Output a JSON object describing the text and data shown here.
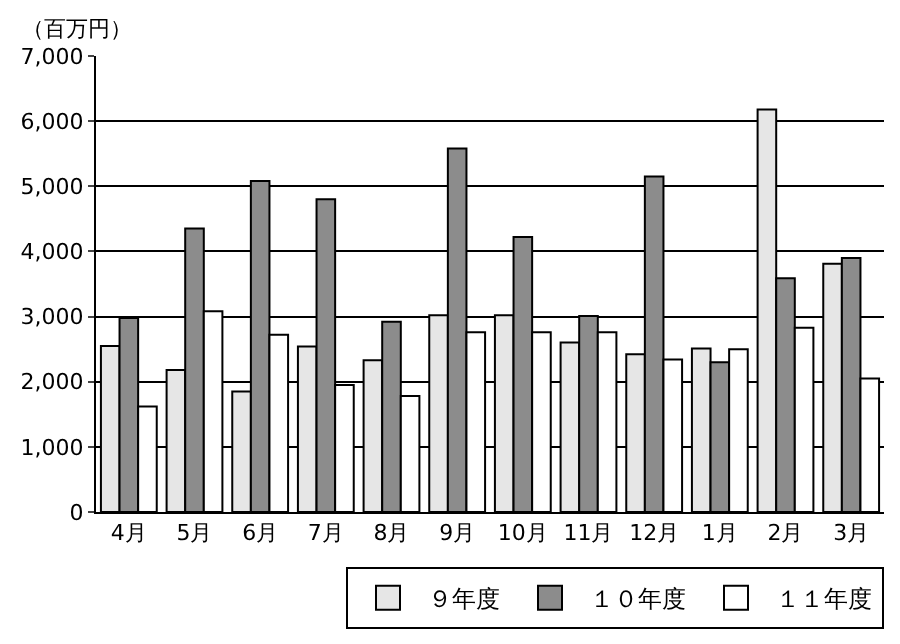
{
  "chart_data": {
    "type": "bar",
    "ylabel": "（百万円）",
    "categories": [
      "4月",
      "5月",
      "6月",
      "7月",
      "8月",
      "9月",
      "10月",
      "11月",
      "12月",
      "1月",
      "2月",
      "3月"
    ],
    "series": [
      {
        "name": "９年度",
        "color": "#e6e6e6",
        "values": [
          2550,
          2180,
          1850,
          2540,
          2330,
          3020,
          3020,
          2600,
          2420,
          2510,
          6180,
          3810
        ]
      },
      {
        "name": "１０年度",
        "color": "#8c8c8c",
        "values": [
          2980,
          4350,
          5080,
          4800,
          2920,
          5580,
          4220,
          3010,
          5150,
          2300,
          3590,
          3900
        ]
      },
      {
        "name": "１１年度",
        "color": "#ffffff",
        "values": [
          1620,
          3080,
          2720,
          1950,
          1780,
          2760,
          2760,
          2760,
          2340,
          2500,
          2830,
          2050
        ]
      }
    ],
    "ylim": [
      0,
      7000
    ],
    "yticks": [
      0,
      {
        "value": 1000,
        "label": "1,000"
      },
      {
        "value": 2000,
        "label": "2,000"
      },
      {
        "value": 3000,
        "label": "3,000"
      },
      {
        "value": 4000,
        "label": "4,000"
      },
      {
        "value": 5000,
        "label": "5,000"
      },
      {
        "value": 6000,
        "label": "6,000"
      },
      {
        "value": 7000,
        "label": "7,000"
      }
    ],
    "grid": "y",
    "legend": "bottom right"
  }
}
